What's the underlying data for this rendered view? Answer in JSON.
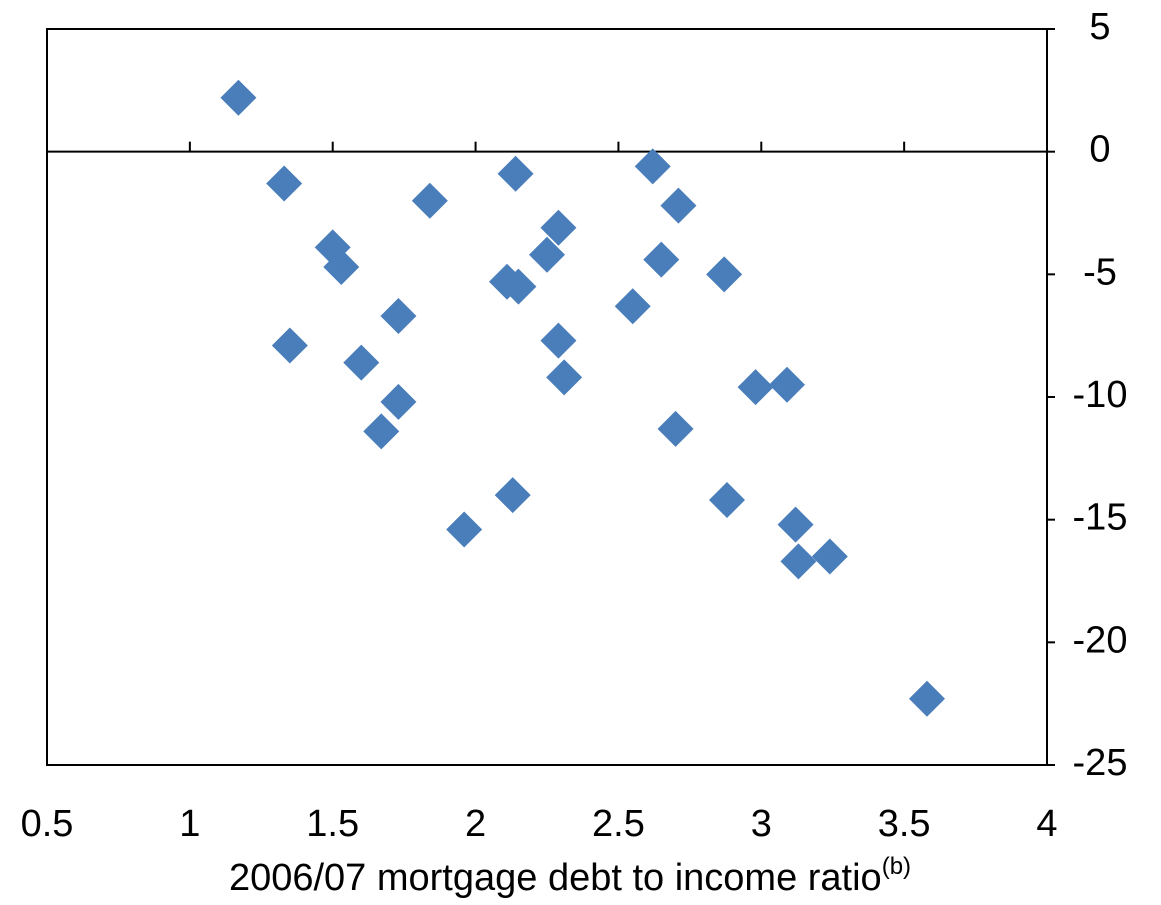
{
  "chart_data": {
    "type": "scatter",
    "xlabel": "2006/07 mortgage debt to income ratio",
    "xlabel_superscript": "(b)",
    "series": [
      {
        "color": "#4a7ebb",
        "x": [
          1.17,
          1.33,
          1.35,
          1.5,
          1.53,
          1.6,
          1.73,
          1.73,
          1.67,
          1.84,
          1.96,
          2.14,
          2.11,
          2.15,
          2.13,
          2.25,
          2.29,
          2.29,
          2.31,
          2.55,
          2.62,
          2.65,
          2.71,
          2.7,
          2.87,
          2.88,
          2.98,
          3.09,
          3.12,
          3.13,
          3.24,
          3.58
        ],
        "values": [
          2.2,
          -1.3,
          -7.9,
          -3.9,
          -4.7,
          -8.6,
          -6.7,
          -10.2,
          -11.4,
          -2.0,
          -15.4,
          -0.9,
          -5.3,
          -5.5,
          -14.0,
          -4.2,
          -3.1,
          -7.7,
          -9.2,
          -6.3,
          -0.6,
          -4.4,
          -2.2,
          -11.3,
          -5.0,
          -14.2,
          -9.6,
          -9.5,
          -15.2,
          -16.7,
          -16.5,
          -22.3
        ]
      }
    ],
    "xlim": [
      0.5,
      4
    ],
    "xticks": [
      0.5,
      1,
      1.5,
      2,
      2.5,
      3,
      3.5,
      4
    ],
    "ylim": [
      -25,
      5
    ],
    "yticks": [
      5,
      0,
      -5,
      -10,
      -15,
      -20,
      -25
    ]
  }
}
